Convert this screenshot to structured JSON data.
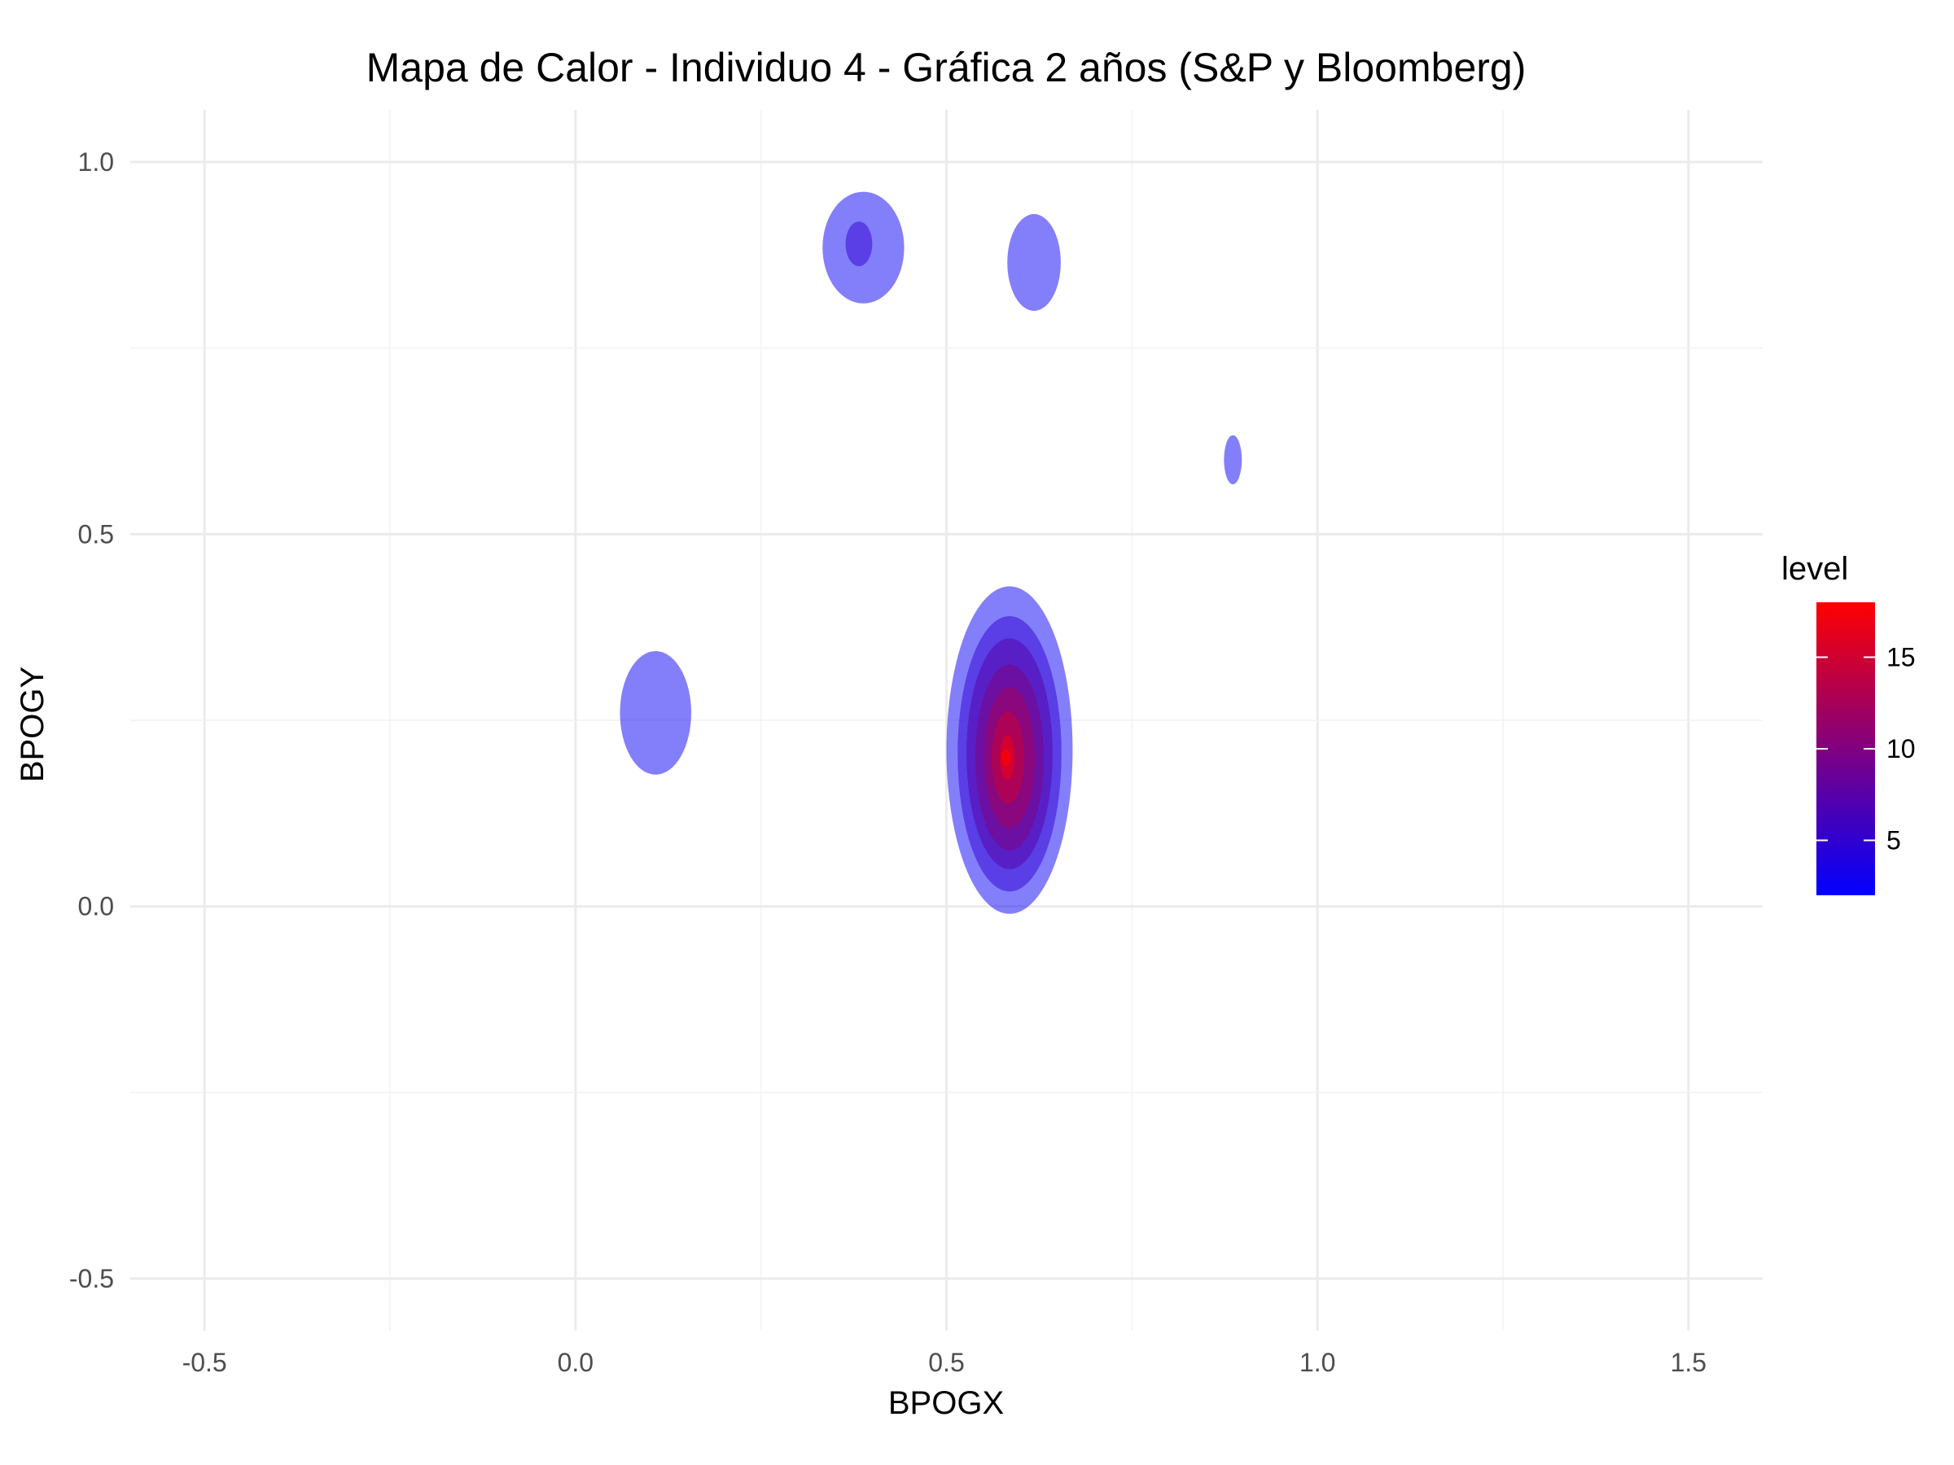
{
  "chart_data": {
    "type": "density_contour",
    "title": "Mapa de Calor - Individuo 4 - Gráfica 2 años (S&P y Bloomberg)",
    "xlabel": "BPOGX",
    "ylabel": "BPOGY",
    "xlim": [
      -0.6,
      1.6
    ],
    "ylim": [
      -0.57,
      1.07
    ],
    "x_ticks": [
      -0.5,
      0.0,
      0.5,
      1.0,
      1.5
    ],
    "x_tick_labels": [
      "-0.5",
      "0.0",
      "0.5",
      "1.0",
      "1.5"
    ],
    "y_ticks": [
      -0.5,
      0.0,
      0.5,
      1.0
    ],
    "y_tick_labels": [
      "-0.5",
      "0.0",
      "0.5",
      "1.0"
    ],
    "grid": true,
    "legend": {
      "title": "level",
      "placement": "right",
      "range": [
        2,
        18
      ],
      "ticks": [
        5,
        10,
        15
      ],
      "tick_labels": [
        "5",
        "10",
        "15"
      ],
      "low_color": "#0000ff",
      "high_color": "#ff0000"
    },
    "density_peak": {
      "x": 0.58,
      "y": 0.2,
      "level": 18
    },
    "regions": [
      {
        "level": 2.5,
        "cx": 0.585,
        "cy": 0.21,
        "rx": 0.085,
        "ry": 0.22
      },
      {
        "level": 5,
        "cx": 0.585,
        "cy": 0.205,
        "rx": 0.07,
        "ry": 0.185
      },
      {
        "level": 7.5,
        "cx": 0.585,
        "cy": 0.205,
        "rx": 0.058,
        "ry": 0.155
      },
      {
        "level": 10,
        "cx": 0.585,
        "cy": 0.2,
        "rx": 0.046,
        "ry": 0.125
      },
      {
        "level": 12.5,
        "cx": 0.585,
        "cy": 0.2,
        "rx": 0.034,
        "ry": 0.095
      },
      {
        "level": 15,
        "cx": 0.583,
        "cy": 0.2,
        "rx": 0.022,
        "ry": 0.062
      },
      {
        "level": 17.5,
        "cx": 0.582,
        "cy": 0.2,
        "rx": 0.01,
        "ry": 0.03
      },
      {
        "level": 2.5,
        "cx": 0.108,
        "cy": 0.26,
        "rx": 0.048,
        "ry": 0.083
      },
      {
        "level": 2.5,
        "cx": 0.388,
        "cy": 0.885,
        "rx": 0.055,
        "ry": 0.075
      },
      {
        "level": 5,
        "cx": 0.382,
        "cy": 0.89,
        "rx": 0.018,
        "ry": 0.03
      },
      {
        "level": 2.5,
        "cx": 0.618,
        "cy": 0.865,
        "rx": 0.036,
        "ry": 0.065
      },
      {
        "level": 2.5,
        "cx": 0.886,
        "cy": 0.6,
        "rx": 0.012,
        "ry": 0.033
      }
    ]
  }
}
